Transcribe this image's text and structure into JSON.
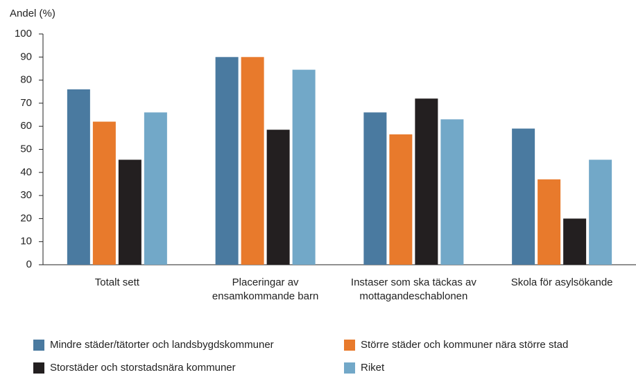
{
  "chart_data": {
    "type": "bar",
    "y_label": "Andel (%)",
    "categories": [
      "Totalt sett",
      "Placeringar av ensamkommande barn",
      "Instaser som ska täckas av mottagandeschablonen",
      "Skola för asylsökande"
    ],
    "series": [
      {
        "name": "Mindre städer/tätorter och landsbygdskommuner",
        "color": "#4a7aa0",
        "values": [
          76,
          90,
          66,
          59
        ]
      },
      {
        "name": "Större städer och kommuner nära större stad",
        "color": "#e87a2c",
        "values": [
          62,
          90,
          56.5,
          37
        ]
      },
      {
        "name": "Storstäder och storstadsnära kommuner",
        "color": "#231f20",
        "values": [
          45.5,
          58.5,
          72,
          20
        ]
      },
      {
        "name": "Riket",
        "color": "#72a8c8",
        "values": [
          66,
          84.5,
          63,
          45.5
        ]
      }
    ],
    "ylim": [
      0,
      100
    ],
    "yticks": [
      0,
      10,
      20,
      30,
      40,
      50,
      60,
      70,
      80,
      90,
      100
    ],
    "grid": false
  }
}
